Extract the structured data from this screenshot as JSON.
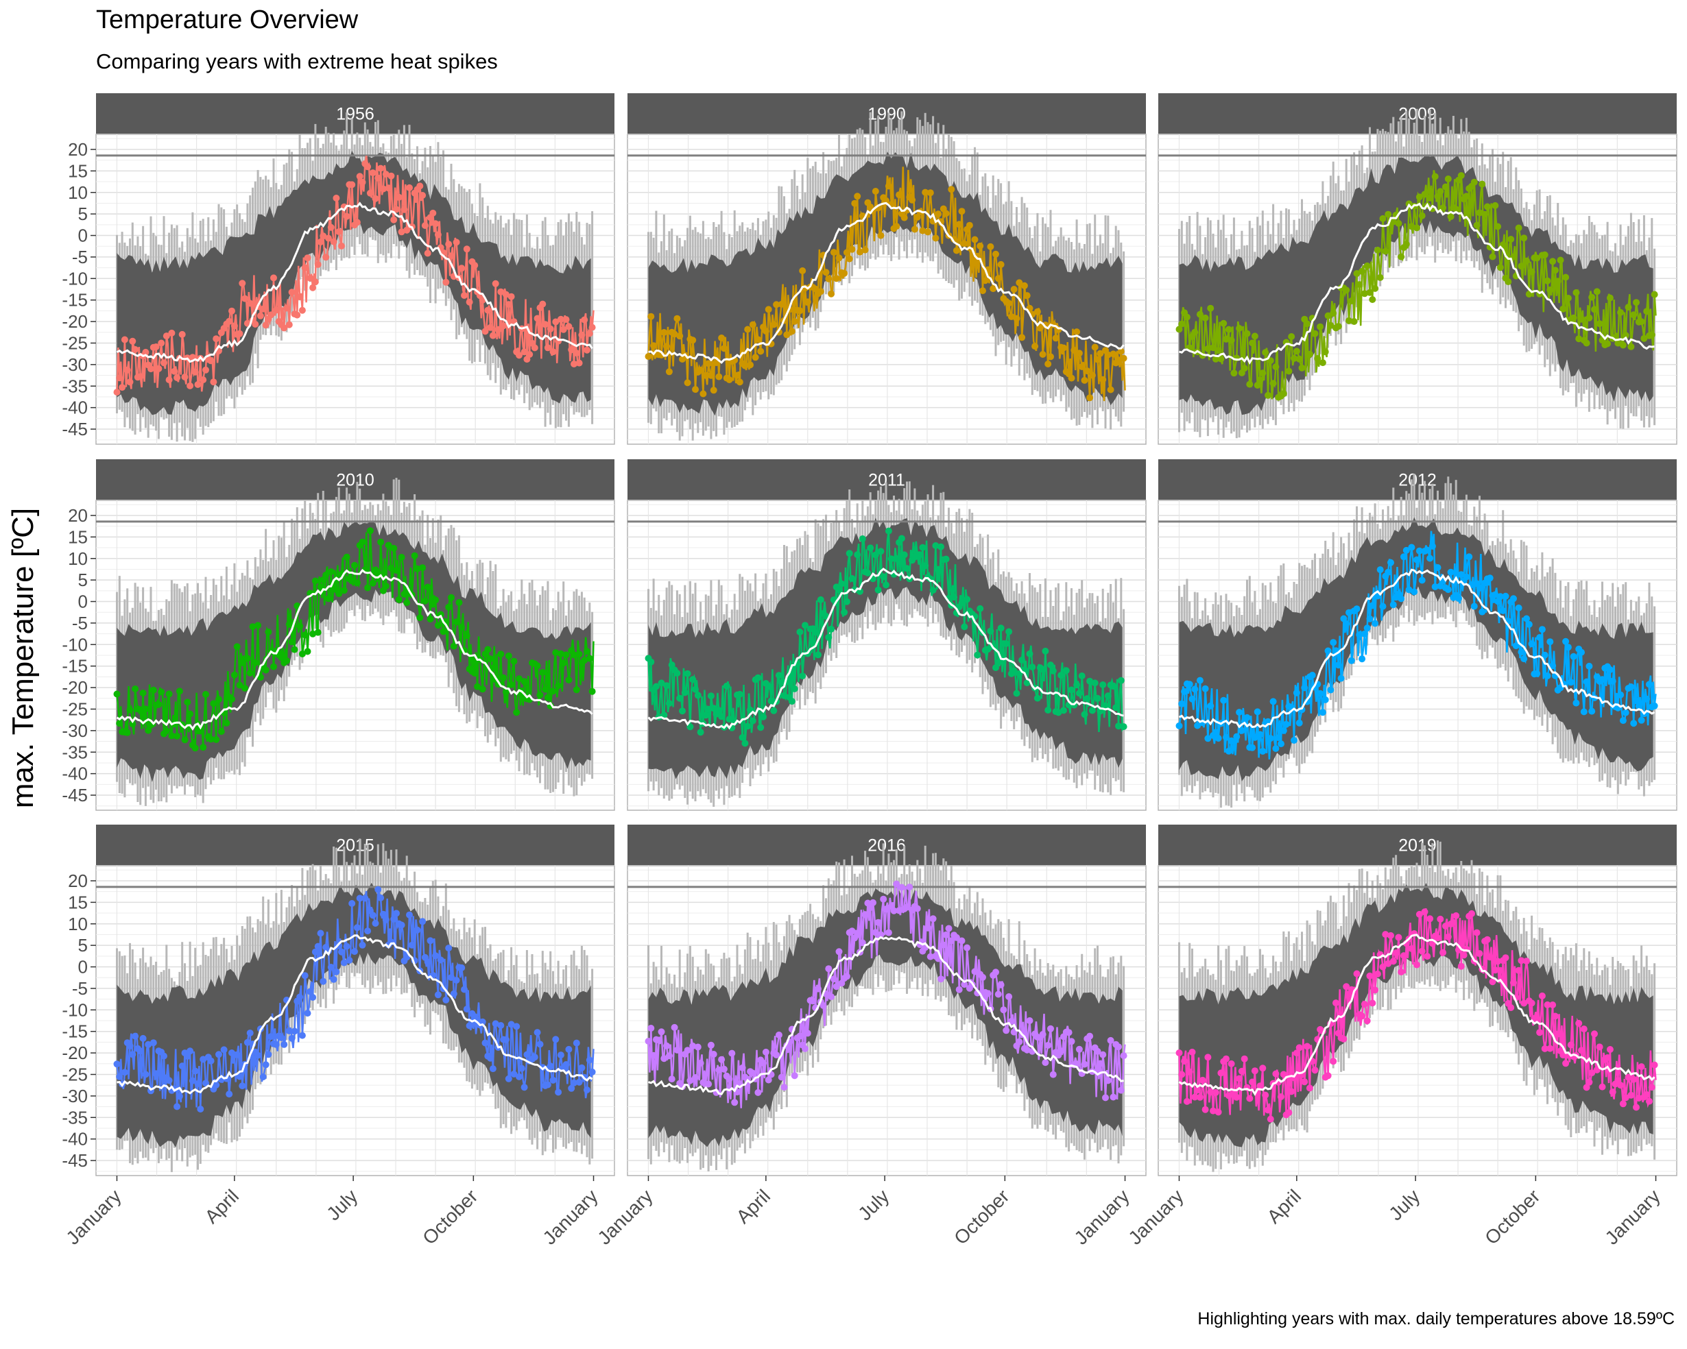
{
  "chart_data": {
    "type": "line",
    "title": "Temperature Overview",
    "subtitle": "Comparing years with extreme heat spikes",
    "caption": "Highlighting years with max. daily temperatures above 18.59ºC",
    "ylabel": "max. Temperature [ºC]",
    "xlabel": "",
    "ylim": [
      -45,
      20
    ],
    "yticks": [
      20,
      15,
      10,
      5,
      0,
      -5,
      -10,
      -15,
      -20,
      -25,
      -30,
      -35,
      -40,
      -45
    ],
    "xticks": [
      "January",
      "April",
      "July",
      "October",
      "January"
    ],
    "xtick_days": [
      1,
      91,
      182,
      274,
      366
    ],
    "threshold": 18.59,
    "background_band": {
      "description_days": [
        1,
        31,
        60,
        91,
        121,
        152,
        182,
        213,
        244,
        274,
        305,
        335,
        366
      ],
      "upper": [
        -6,
        -7,
        -6,
        -2,
        6,
        14,
        18,
        17,
        10,
        1,
        -6,
        -7,
        -6
      ],
      "lower": [
        -38,
        -40,
        -40,
        -33,
        -18,
        -4,
        2,
        1,
        -8,
        -22,
        -32,
        -37,
        -38
      ]
    },
    "mean_curve": {
      "days": [
        1,
        31,
        60,
        91,
        121,
        152,
        182,
        213,
        244,
        274,
        305,
        335,
        366
      ],
      "values": [
        -27,
        -28,
        -29,
        -25,
        -12,
        2,
        7,
        5,
        -3,
        -13,
        -21,
        -24,
        -26
      ]
    },
    "panels": [
      {
        "year": "1956",
        "color": "#F8766D",
        "monthly_days": [
          15,
          45,
          74,
          105,
          135,
          166,
          196,
          227,
          258,
          288,
          319,
          349
        ],
        "monthly_values": [
          -30,
          -29,
          -30,
          -14,
          -15,
          2,
          12,
          6,
          -5,
          -18,
          -22,
          -24
        ],
        "max": 20
      },
      {
        "year": "1990",
        "color": "#CD9600",
        "monthly_days": [
          15,
          45,
          74,
          105,
          135,
          166,
          196,
          227,
          258,
          288,
          319,
          349
        ],
        "monthly_values": [
          -25,
          -30,
          -29,
          -18,
          -10,
          3,
          9,
          5,
          -6,
          -18,
          -26,
          -33
        ],
        "max": 19
      },
      {
        "year": "2009",
        "color": "#7CAE00",
        "monthly_days": [
          15,
          45,
          74,
          105,
          135,
          166,
          196,
          227,
          258,
          288,
          319,
          349
        ],
        "monthly_values": [
          -22,
          -26,
          -32,
          -25,
          -15,
          0,
          12,
          6,
          -5,
          -12,
          -20,
          -20
        ],
        "max": 18
      },
      {
        "year": "2010",
        "color": "#0CB702",
        "monthly_days": [
          15,
          45,
          74,
          105,
          135,
          166,
          196,
          227,
          258,
          288,
          319,
          349
        ],
        "monthly_values": [
          -25,
          -26,
          -28,
          -12,
          -8,
          2,
          10,
          4,
          -6,
          -17,
          -20,
          -15
        ],
        "max": 19
      },
      {
        "year": "2011",
        "color": "#00BE67",
        "monthly_days": [
          15,
          45,
          74,
          105,
          135,
          166,
          196,
          227,
          258,
          288,
          319,
          349
        ],
        "monthly_values": [
          -20,
          -24,
          -26,
          -18,
          -5,
          8,
          10,
          7,
          -7,
          -15,
          -20,
          -25
        ],
        "max": 19
      },
      {
        "year": "2012",
        "color": "#00A9FF",
        "monthly_days": [
          15,
          45,
          74,
          105,
          135,
          166,
          196,
          227,
          258,
          288,
          319,
          349
        ],
        "monthly_values": [
          -25,
          -29,
          -30,
          -20,
          -8,
          5,
          10,
          5,
          -6,
          -14,
          -20,
          -22
        ],
        "max": 20
      },
      {
        "year": "2015",
        "color": "#4E7BF8",
        "monthly_days": [
          15,
          45,
          74,
          105,
          135,
          166,
          196,
          227,
          258,
          288,
          319,
          349
        ],
        "monthly_values": [
          -22,
          -26,
          -27,
          -22,
          -12,
          4,
          12,
          6,
          -2,
          -18,
          -22,
          -24
        ],
        "max": 20
      },
      {
        "year": "2016",
        "color": "#C77CFF",
        "monthly_days": [
          15,
          45,
          74,
          105,
          135,
          166,
          196,
          227,
          258,
          288,
          319,
          349
        ],
        "monthly_values": [
          -20,
          -25,
          -27,
          -22,
          -8,
          8,
          14,
          4,
          -5,
          -15,
          -20,
          -24
        ],
        "max": 20
      },
      {
        "year": "2019",
        "color": "#FF3FBF",
        "monthly_days": [
          15,
          45,
          74,
          105,
          135,
          166,
          196,
          227,
          258,
          288,
          319,
          349
        ],
        "monthly_values": [
          -26,
          -28,
          -29,
          -22,
          -8,
          2,
          8,
          6,
          -3,
          -15,
          -22,
          -26
        ],
        "max": 21
      }
    ]
  }
}
